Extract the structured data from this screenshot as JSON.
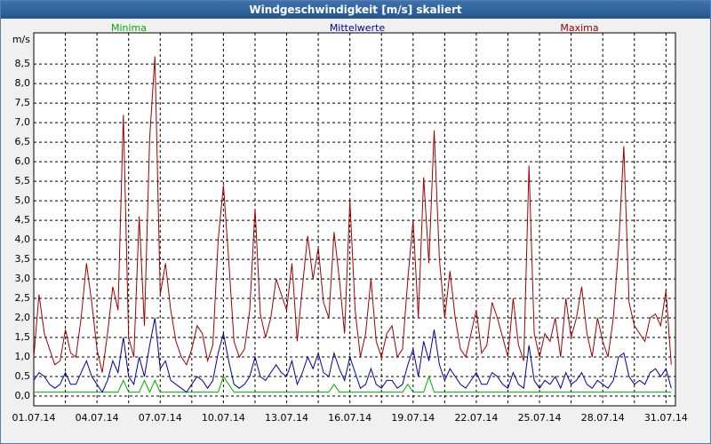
{
  "window_title": "Windgeschwindigkeit [m/s] skaliert",
  "chart_data": {
    "type": "line",
    "y_label": "m/s",
    "x": [
      0,
      0.25,
      0.5,
      0.75,
      1,
      1.25,
      1.5,
      1.75,
      2,
      2.25,
      2.5,
      2.75,
      3,
      3.25,
      3.5,
      3.75,
      4,
      4.25,
      4.5,
      4.75,
      5,
      5.25,
      5.5,
      5.75,
      6,
      6.25,
      6.5,
      6.75,
      7,
      7.25,
      7.5,
      7.75,
      8,
      8.25,
      8.5,
      8.75,
      9,
      9.25,
      9.5,
      9.75,
      10,
      10.25,
      10.5,
      10.75,
      11,
      11.25,
      11.5,
      11.75,
      12,
      12.25,
      12.5,
      12.75,
      13,
      13.25,
      13.5,
      13.75,
      14,
      14.25,
      14.5,
      14.75,
      15,
      15.25,
      15.5,
      15.75,
      16,
      16.25,
      16.5,
      16.75,
      17,
      17.25,
      17.5,
      17.75,
      18,
      18.25,
      18.5,
      18.75,
      19,
      19.25,
      19.5,
      19.75,
      20,
      20.25,
      20.5,
      20.75,
      21,
      21.25,
      21.5,
      21.75,
      22,
      22.25,
      22.5,
      22.75,
      23,
      23.25,
      23.5,
      23.75,
      24,
      24.25,
      24.5,
      24.75,
      25,
      25.25,
      25.5,
      25.75,
      26,
      26.25,
      26.5,
      26.75,
      27,
      27.25,
      27.5,
      27.75,
      28,
      28.25,
      28.5,
      28.75,
      29,
      29.25,
      29.5,
      29.75,
      30,
      30.25
    ],
    "series": [
      {
        "name": "Minima",
        "color": "#00b000",
        "values": [
          0.1,
          0.1,
          0.1,
          0.1,
          0.1,
          0.1,
          0.1,
          0.1,
          0.1,
          0.1,
          0.1,
          0.1,
          0.1,
          0.1,
          0.1,
          0.1,
          0.1,
          0.4,
          0.1,
          0.1,
          0.1,
          0.4,
          0.1,
          0.4,
          0.1,
          0.1,
          0.1,
          0.1,
          0.1,
          0.1,
          0.1,
          0.1,
          0.1,
          0.1,
          0.1,
          0.1,
          0.5,
          0.3,
          0.1,
          0.1,
          0.1,
          0.1,
          0.1,
          0.1,
          0.1,
          0.1,
          0.1,
          0.1,
          0.1,
          0.1,
          0.1,
          0.1,
          0.1,
          0.1,
          0.1,
          0.1,
          0.1,
          0.3,
          0.1,
          0.1,
          0.1,
          0.1,
          0.1,
          0.1,
          0.1,
          0.1,
          0.1,
          0.1,
          0.1,
          0.1,
          0.1,
          0.3,
          0.1,
          0.1,
          0.1,
          0.5,
          0.1,
          0.1,
          0.1,
          0.1,
          0.1,
          0.1,
          0.1,
          0.1,
          0.1,
          0.1,
          0.1,
          0.1,
          0.1,
          0.1,
          0.1,
          0.1,
          0.1,
          0.1,
          0.1,
          0.1,
          0.1,
          0.1,
          0.1,
          0.1,
          0.1,
          0.1,
          0.1,
          0.1,
          0.1,
          0.1,
          0.1,
          0.1,
          0.1,
          0.1,
          0.1,
          0.1,
          0.1,
          0.1,
          0.1,
          0.1,
          0.1,
          0.1,
          0.1,
          0.1,
          0.1,
          0.1
        ]
      },
      {
        "name": "Mittelwerte",
        "color": "#0000a0",
        "values": [
          0.4,
          0.6,
          0.5,
          0.3,
          0.2,
          0.3,
          0.6,
          0.3,
          0.3,
          0.6,
          0.9,
          0.5,
          0.3,
          0.1,
          0.4,
          0.9,
          0.6,
          1.5,
          0.5,
          0.3,
          1.0,
          0.5,
          1.3,
          2.0,
          0.7,
          0.9,
          0.4,
          0.3,
          0.2,
          0.1,
          0.3,
          0.5,
          0.4,
          0.2,
          0.4,
          1.1,
          1.6,
          0.9,
          0.3,
          0.2,
          0.3,
          0.5,
          1.0,
          0.5,
          0.4,
          0.6,
          0.8,
          0.6,
          0.5,
          0.9,
          0.3,
          0.6,
          1.0,
          0.7,
          1.1,
          0.6,
          0.5,
          1.1,
          0.7,
          0.4,
          1.0,
          0.6,
          0.2,
          0.3,
          0.7,
          0.3,
          0.2,
          0.4,
          0.4,
          0.2,
          0.3,
          0.8,
          1.2,
          0.5,
          1.4,
          0.9,
          1.7,
          0.8,
          0.4,
          0.7,
          0.5,
          0.3,
          0.2,
          0.4,
          0.6,
          0.3,
          0.3,
          0.6,
          0.5,
          0.3,
          0.2,
          0.6,
          0.3,
          0.2,
          1.3,
          0.4,
          0.2,
          0.4,
          0.3,
          0.5,
          0.2,
          0.6,
          0.3,
          0.4,
          0.6,
          0.3,
          0.2,
          0.4,
          0.3,
          0.2,
          0.4,
          1.0,
          1.1,
          0.5,
          0.3,
          0.4,
          0.3,
          0.6,
          0.7,
          0.5,
          0.7,
          0.2
        ]
      },
      {
        "name": "Maxima",
        "color": "#a00000",
        "values": [
          1.0,
          2.6,
          1.6,
          1.2,
          0.8,
          0.9,
          1.7,
          1.1,
          1.0,
          2.0,
          3.4,
          2.4,
          1.2,
          0.6,
          1.6,
          2.8,
          2.2,
          7.2,
          1.5,
          1.0,
          4.6,
          1.8,
          6.6,
          8.7,
          2.6,
          3.4,
          2.2,
          1.4,
          1.0,
          0.8,
          1.2,
          1.8,
          1.6,
          0.9,
          1.3,
          4.0,
          5.4,
          3.5,
          1.4,
          1.0,
          1.2,
          2.2,
          4.8,
          2.1,
          1.5,
          2.0,
          3.0,
          2.6,
          2.2,
          3.4,
          1.4,
          2.8,
          4.1,
          3.0,
          3.8,
          2.4,
          2.0,
          4.2,
          3.0,
          1.6,
          5.0,
          2.2,
          1.0,
          1.6,
          3.0,
          1.4,
          1.0,
          1.6,
          1.8,
          1.0,
          1.2,
          3.0,
          4.5,
          2.0,
          5.6,
          3.4,
          6.8,
          3.5,
          2.0,
          3.2,
          2.0,
          1.2,
          1.0,
          1.6,
          2.2,
          1.1,
          1.3,
          2.4,
          2.0,
          1.5,
          1.0,
          2.5,
          1.3,
          0.9,
          5.9,
          1.6,
          1.0,
          1.6,
          1.4,
          2.0,
          1.0,
          2.5,
          1.5,
          2.0,
          2.8,
          1.6,
          1.0,
          2.0,
          1.4,
          1.0,
          2.0,
          3.8,
          6.4,
          2.4,
          1.8,
          1.6,
          1.4,
          2.0,
          2.1,
          1.8,
          2.7,
          0.8
        ]
      }
    ],
    "xlim": [
      0,
      30.45
    ],
    "xticks": [
      {
        "value": 0,
        "label": "01.07.14"
      },
      {
        "value": 3,
        "label": "04.07.14"
      },
      {
        "value": 6,
        "label": "07.07.14"
      },
      {
        "value": 9,
        "label": "10.07.14"
      },
      {
        "value": 12,
        "label": "13.07.14"
      },
      {
        "value": 15,
        "label": "16.07.14"
      },
      {
        "value": 18,
        "label": "19.07.14"
      },
      {
        "value": 21,
        "label": "22.07.14"
      },
      {
        "value": 24,
        "label": "25.07.14"
      },
      {
        "value": 27,
        "label": "28.07.14"
      },
      {
        "value": 30,
        "label": "31.07.14"
      }
    ],
    "ylim": [
      -0.25,
      9.3
    ],
    "yticks": [
      {
        "value": 0,
        "label": "0,0"
      },
      {
        "value": 0.5,
        "label": "0,5"
      },
      {
        "value": 1,
        "label": "1,0"
      },
      {
        "value": 1.5,
        "label": "1,5"
      },
      {
        "value": 2,
        "label": "2,0"
      },
      {
        "value": 2.5,
        "label": "2,5"
      },
      {
        "value": 3,
        "label": "3,0"
      },
      {
        "value": 3.5,
        "label": "3,5"
      },
      {
        "value": 4,
        "label": "4,0"
      },
      {
        "value": 4.5,
        "label": "4,5"
      },
      {
        "value": 5,
        "label": "5,0"
      },
      {
        "value": 5.5,
        "label": "5,5"
      },
      {
        "value": 6,
        "label": "6,0"
      },
      {
        "value": 6.5,
        "label": "6,5"
      },
      {
        "value": 7,
        "label": "7,0"
      },
      {
        "value": 7.5,
        "label": "7,5"
      },
      {
        "value": 8,
        "label": "8,0"
      },
      {
        "value": 8.5,
        "label": "8,5"
      }
    ],
    "grid": true
  }
}
